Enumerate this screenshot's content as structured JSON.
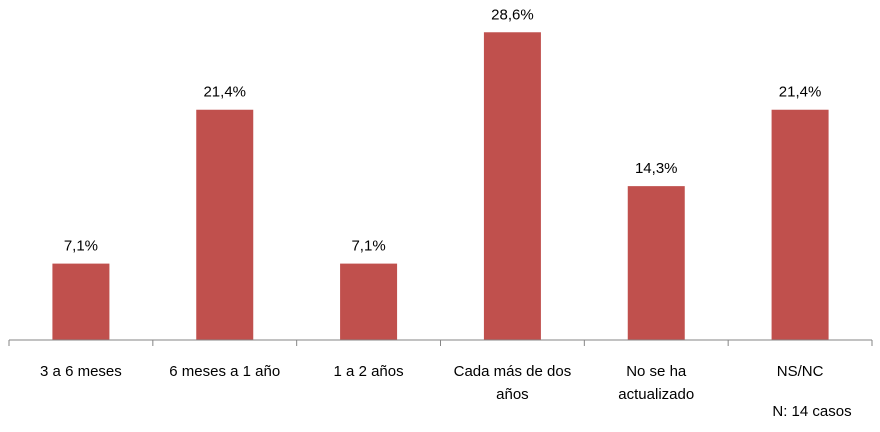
{
  "chart_data": {
    "type": "bar",
    "categories": [
      [
        "3 a 6 meses"
      ],
      [
        "6 meses a 1 año"
      ],
      [
        "1 a 2 años"
      ],
      [
        "Cada más de dos",
        "años"
      ],
      [
        "No se ha",
        "actualizado"
      ],
      [
        "NS/NC"
      ]
    ],
    "values": [
      7.1,
      21.4,
      7.1,
      28.6,
      14.3,
      21.4
    ],
    "data_labels": [
      "7,1%",
      "21,4%",
      "7,1%",
      "28,6%",
      "14,3%",
      "21,4%"
    ],
    "title": "",
    "xlabel": "",
    "ylabel": "",
    "ylim": [
      0,
      30
    ],
    "grid": false,
    "legend": "none",
    "bar_color": "#c0504d",
    "note": "N: 14 casos"
  }
}
